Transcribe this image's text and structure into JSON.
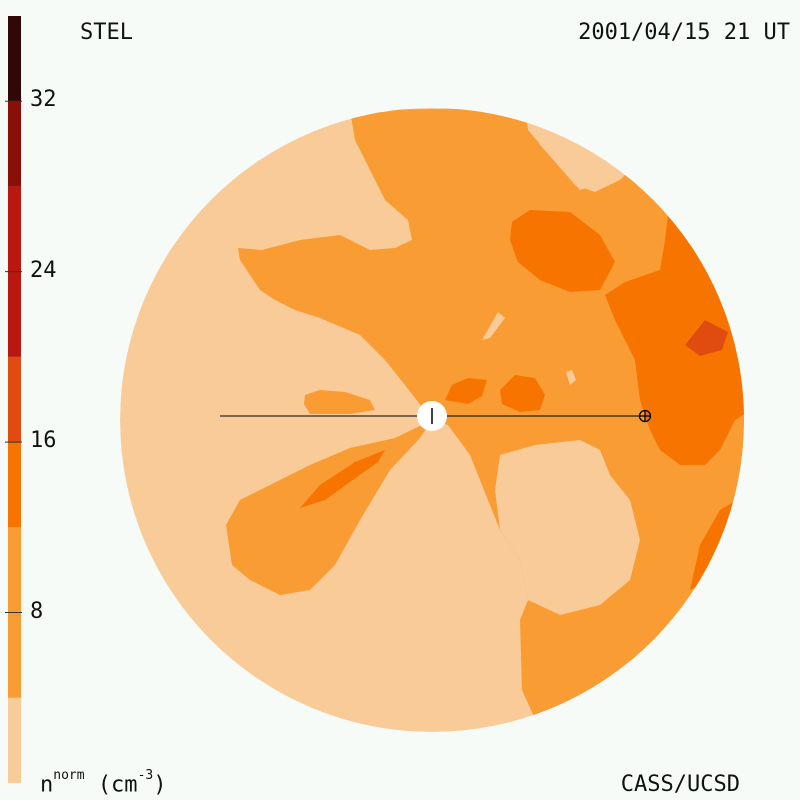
{
  "header": {
    "source": "STEL",
    "timestamp": "2001/04/15 21 UT"
  },
  "footer": {
    "credit": "CASS/UCSD",
    "units_main": "n",
    "units_sup": "norm",
    "units_rest": "(cm",
    "units_exp": "-3",
    "units_close": ")"
  },
  "colorbar": {
    "ticks": [
      "32",
      "24",
      "16",
      "8"
    ],
    "tick_values": [
      32,
      24,
      16,
      8
    ],
    "range": [
      0,
      36
    ],
    "levels": [
      {
        "from": 0,
        "to": 4,
        "color": "#f8cb98"
      },
      {
        "from": 4,
        "to": 12,
        "color": "#f89c33"
      },
      {
        "from": 12,
        "to": 16,
        "color": "#f87400"
      },
      {
        "from": 16,
        "to": 20,
        "color": "#e04c10"
      },
      {
        "from": 20,
        "to": 28,
        "color": "#b81810"
      },
      {
        "from": 28,
        "to": 32,
        "color": "#881008"
      },
      {
        "from": 32,
        "to": 36,
        "color": "#300808"
      }
    ]
  },
  "map": {
    "colors": {
      "background": "#f8cb98",
      "level2": "#f89c33",
      "level3": "#f87400",
      "level4": "#e04c10"
    },
    "markers": [
      "sun-marker",
      "earth-marker",
      "sun-earth-line"
    ]
  }
}
